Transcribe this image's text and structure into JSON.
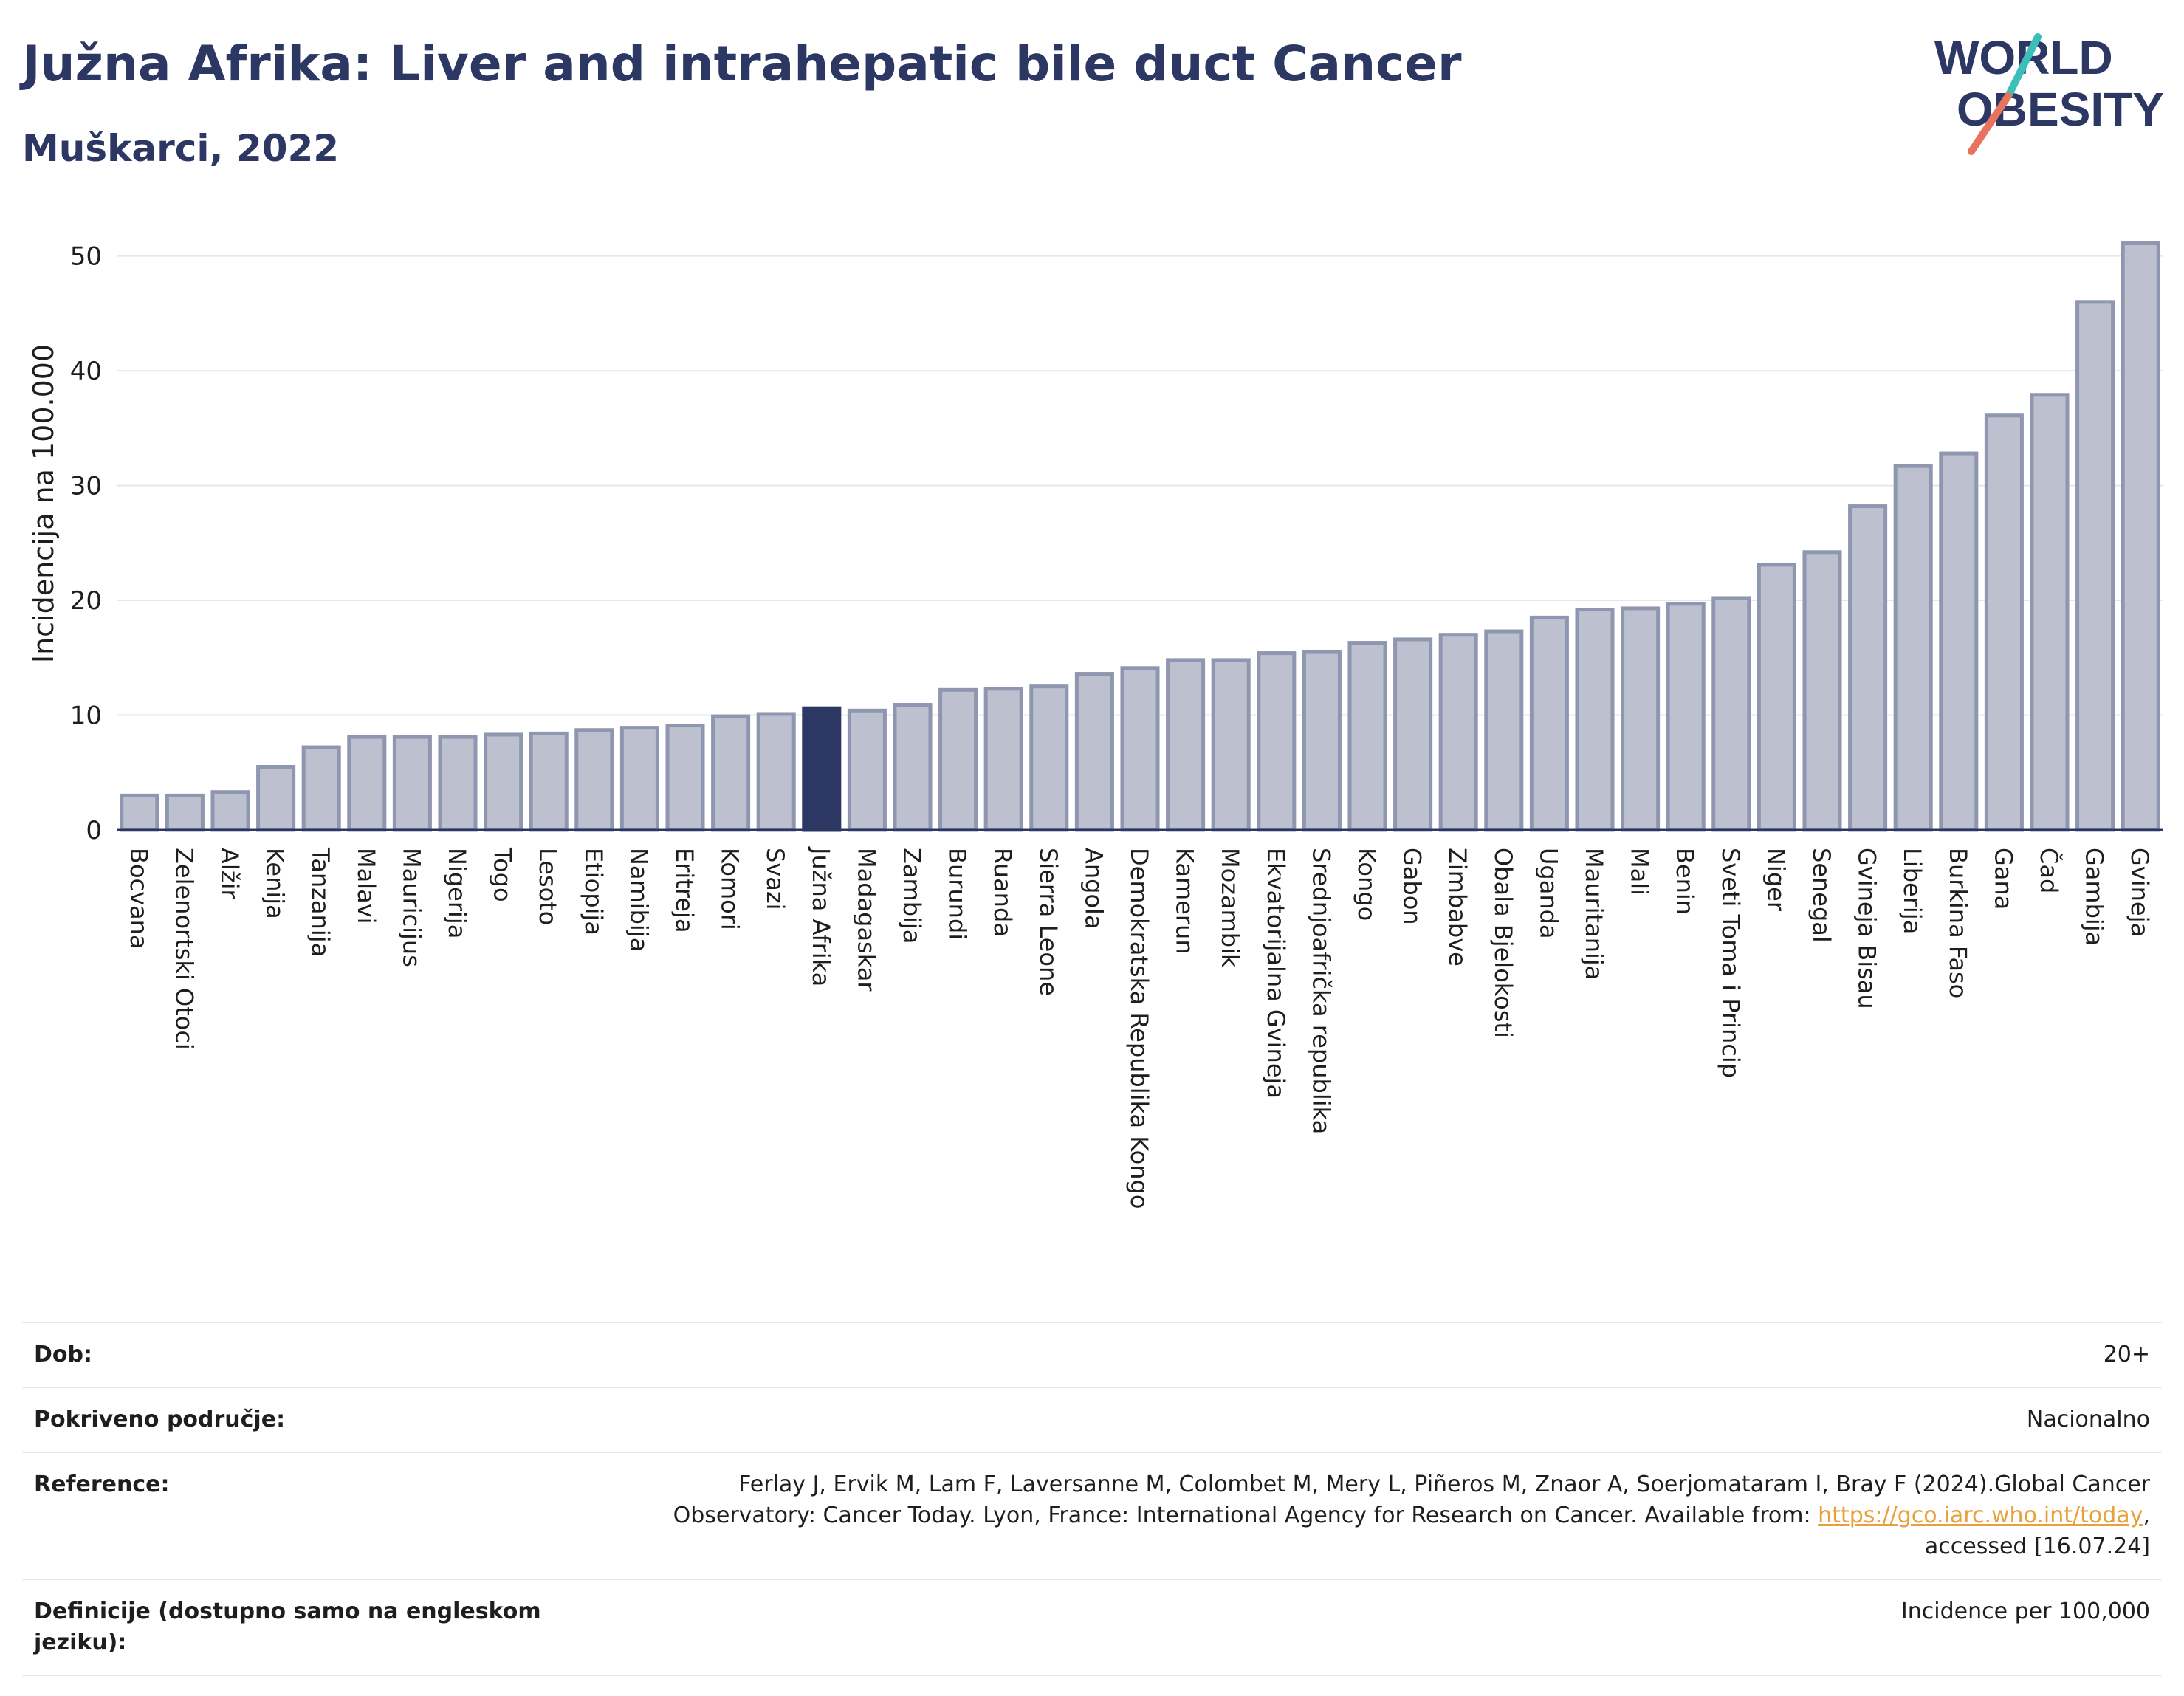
{
  "header": {
    "title": "Južna Afrika: Liver and intrahepatic bile duct Cancer",
    "subtitle": "Muškarci, 2022"
  },
  "logo": {
    "line1": "WORLD",
    "line2": "OBESITY",
    "text_color": "#2c3863",
    "slash_colors": [
      "#3bbfb8",
      "#e8735f"
    ]
  },
  "colors": {
    "bar_default": "#bcc0cf",
    "bar_stroke": "#8f96b0",
    "bar_highlight": "#2c3863",
    "grid": "#e6e6ea"
  },
  "chart_data": {
    "type": "bar",
    "ylabel": "Incidencija na 100.000",
    "xlabel": "",
    "ylim": [
      0,
      53
    ],
    "yticks": [
      0,
      10,
      20,
      30,
      40,
      50
    ],
    "grid": true,
    "highlight": "Južna Afrika",
    "categories": [
      "Bocvana",
      "Zelenortski Otoci",
      "Alžir",
      "Kenija",
      "Tanzanija",
      "Malavi",
      "Mauricijus",
      "Nigerija",
      "Togo",
      "Lesoto",
      "Etiopija",
      "Namibija",
      "Eritreja",
      "Komori",
      "Svazi",
      "Južna Afrika",
      "Madagaskar",
      "Zambija",
      "Burundi",
      "Ruanda",
      "Sierra Leone",
      "Angola",
      "Demokratska Republika Kongo",
      "Kamerun",
      "Mozambik",
      "Ekvatorijalna Gvineja",
      "Srednjoafrička republika",
      "Kongo",
      "Gabon",
      "Zimbabve",
      "Obala Bjelokosti",
      "Uganda",
      "Mauritanija",
      "Mali",
      "Benin",
      "Sveti Toma i Princip",
      "Niger",
      "Senegal",
      "Gvineja Bisau",
      "Liberija",
      "Burkina Faso",
      "Gana",
      "Čad",
      "Gambija",
      "Gvineja"
    ],
    "values": [
      3.0,
      3.0,
      3.3,
      5.5,
      7.2,
      8.1,
      8.1,
      8.1,
      8.3,
      8.4,
      8.7,
      8.9,
      9.1,
      9.9,
      10.1,
      10.6,
      10.4,
      10.9,
      12.2,
      12.3,
      12.5,
      13.6,
      14.1,
      14.8,
      14.8,
      15.4,
      15.5,
      16.3,
      16.6,
      17.0,
      17.3,
      18.5,
      19.2,
      19.3,
      19.7,
      20.2,
      23.1,
      24.2,
      28.2,
      31.7,
      32.8,
      36.1,
      37.9,
      46.0,
      51.1
    ]
  },
  "info": {
    "rows": [
      {
        "key": "Dob:",
        "value": "20+"
      },
      {
        "key": "Pokriveno područje:",
        "value": "Nacionalno"
      },
      {
        "key": "Definicije (dostupno samo na engleskom jeziku):",
        "value": "Incidence per 100,000"
      }
    ],
    "reference": {
      "key": "Reference:",
      "text_before": "Ferlay J, Ervik M, Lam F, Laversanne M, Colombet M, Mery L, Piñeros M, Znaor A, Soerjomataram I, Bray F (2024).Global Cancer Observatory: Cancer Today. Lyon, France: International Agency for Research on Cancer. Available from: ",
      "link_text": "https://gco.iarc.who.int/today",
      "text_after": ", accessed [16.07.24]"
    }
  }
}
